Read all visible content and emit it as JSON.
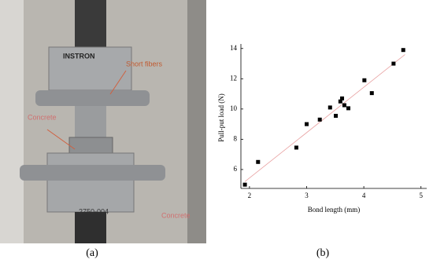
{
  "photo": {
    "labels": [
      "INSTRON",
      "2750-004",
      "Short fibers",
      "Concrete",
      "Concrete"
    ],
    "caption": "(a)"
  },
  "chart_data": {
    "type": "scatter",
    "caption": "(b)",
    "x_label": "Bond length (mm)",
    "y_label": "Pull-put load (N)",
    "x": [
      1.92,
      2.15,
      2.82,
      3.0,
      3.23,
      3.41,
      3.51,
      3.59,
      3.62,
      3.66,
      3.73,
      4.01,
      4.14,
      4.52,
      4.69
    ],
    "values": [
      5.0,
      6.5,
      7.45,
      9.0,
      9.3,
      10.1,
      9.55,
      10.5,
      10.7,
      10.25,
      10.05,
      11.9,
      11.05,
      13.0,
      13.9
    ],
    "color": "#000000",
    "trend_line": {
      "x": [
        1.92,
        4.72
      ],
      "y": [
        5.2,
        13.6
      ],
      "color": "#e8a0a0"
    },
    "xlim": [
      1.85,
      5.1
    ],
    "ylim": [
      4.75,
      14.3
    ],
    "xticks": [
      2,
      3,
      4,
      5
    ],
    "yticks": [
      6,
      8,
      10,
      12,
      14
    ]
  }
}
